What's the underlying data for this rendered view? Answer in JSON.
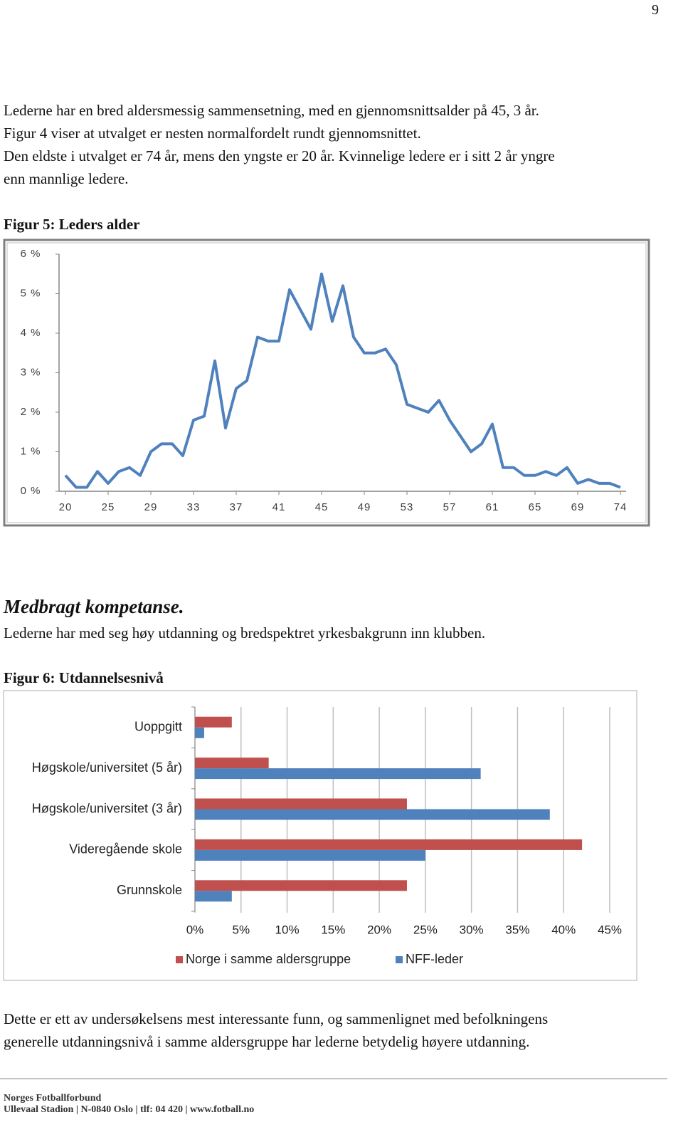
{
  "page_number": "9",
  "intro_lines": [
    "Lederne har en bred aldersmessig sammensetning, med en gjennomsnittsalder på 45, 3 år.",
    "Figur 4 viser at utvalget er nesten normalfordelt rundt gjennomsnittet.",
    "Den eldste i utvalget er 74 år, mens den yngste er 20 år. Kvinnelige ledere er i sitt 2 år yngre",
    "enn mannlige ledere."
  ],
  "figure5_caption": "Figur 5: Leders alder",
  "section_heading": "Medbragt kompetanse.",
  "section_text": "Lederne har med seg høy utdanning og bredspektret yrkesbakgrunn inn klubben.",
  "figure6_caption": "Figur 6: Utdannelsesnivå",
  "closing_lines": [
    "Dette er ett av undersøkelsens mest interessante funn, og sammenlignet med befolkningens",
    "generelle utdanningsnivå i samme aldersgruppe har lederne betydelig høyere utdanning."
  ],
  "footer_lines": [
    "Norges Fotballforbund",
    "Ullevaal Stadion | N-0840 Oslo | tlf: 04 420 | www.fotball.no"
  ],
  "chart_data": [
    {
      "type": "line",
      "categories": [
        "20",
        null,
        null,
        null,
        "25",
        null,
        null,
        null,
        "29",
        null,
        null,
        null,
        "33",
        null,
        null,
        null,
        "37",
        null,
        null,
        null,
        "41",
        null,
        null,
        null,
        "45",
        null,
        null,
        null,
        "49",
        null,
        null,
        null,
        "53",
        null,
        null,
        null,
        "57",
        null,
        null,
        null,
        "61",
        null,
        null,
        null,
        "65",
        null,
        null,
        null,
        "69",
        null,
        null,
        null,
        "74"
      ],
      "values": [
        0.4,
        0.1,
        0.1,
        0.5,
        0.2,
        0.5,
        0.6,
        0.4,
        1.0,
        1.2,
        1.2,
        0.9,
        1.8,
        1.9,
        3.3,
        1.6,
        2.6,
        2.8,
        3.9,
        3.8,
        3.8,
        5.1,
        4.6,
        4.1,
        5.5,
        4.3,
        5.2,
        3.9,
        3.5,
        3.5,
        3.6,
        3.2,
        2.2,
        2.1,
        2.0,
        2.3,
        1.8,
        1.4,
        1.0,
        1.2,
        1.7,
        0.6,
        0.6,
        0.4,
        0.4,
        0.5,
        0.4,
        0.6,
        0.2,
        0.3,
        0.2,
        0.2,
        0.1
      ],
      "color": "#4f81bd",
      "ylim": [
        0,
        6
      ],
      "yticks": [
        {
          "value": 0,
          "label": "0 %"
        },
        {
          "value": 1,
          "label": "1 %"
        },
        {
          "value": 2,
          "label": "2 %"
        },
        {
          "value": 3,
          "label": "3 %"
        },
        {
          "value": 4,
          "label": "4 %"
        },
        {
          "value": 5,
          "label": "5 %"
        },
        {
          "value": 6,
          "label": "6 %"
        }
      ],
      "grid": false
    },
    {
      "type": "bar",
      "orientation": "horizontal",
      "categories": [
        "Uoppgitt",
        "Høgskole/universitet (5 år)",
        "Høgskole/universitet (3 år)",
        "Videregående skole",
        "Grunnskole"
      ],
      "series": [
        {
          "name": "Norge i samme aldersgruppe",
          "color": "#c0504d",
          "values": [
            4,
            8,
            23,
            42,
            23
          ]
        },
        {
          "name": "NFF-leder",
          "color": "#4f81bd",
          "values": [
            1,
            31,
            38.5,
            25,
            4
          ]
        }
      ],
      "xlim": [
        0,
        45
      ],
      "xticks": [
        {
          "value": 0,
          "label": "0%"
        },
        {
          "value": 5,
          "label": "5%"
        },
        {
          "value": 10,
          "label": "10%"
        },
        {
          "value": 15,
          "label": "15%"
        },
        {
          "value": 20,
          "label": "20%"
        },
        {
          "value": 25,
          "label": "25%"
        },
        {
          "value": 30,
          "label": "30%"
        },
        {
          "value": 35,
          "label": "35%"
        },
        {
          "value": 40,
          "label": "40%"
        },
        {
          "value": 45,
          "label": "45%"
        }
      ],
      "grid": true,
      "legend": "bottom"
    }
  ]
}
